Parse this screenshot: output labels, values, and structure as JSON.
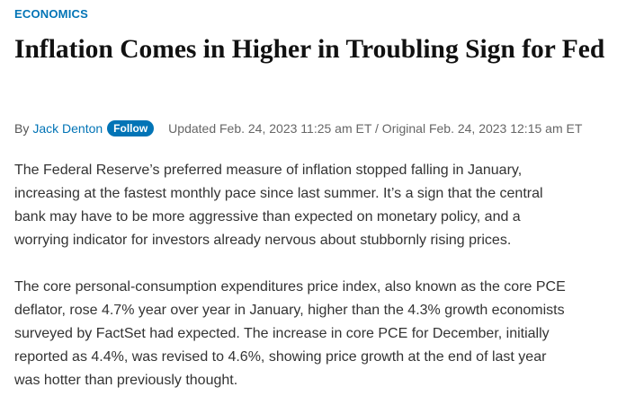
{
  "header": {
    "section": "ECONOMICS",
    "title": "Inflation Comes in Higher in Troubling Sign for Fed"
  },
  "byline": {
    "by": "By",
    "author": "Jack Denton",
    "follow": "Follow",
    "updated": "Updated Feb. 24, 2023 11:25 am ET / Original Feb. 24, 2023 12:15 am ET"
  },
  "body": {
    "paragraphs": [
      [
        "The Federal Reserve’s preferred measure of inflation stopped falling in January,",
        "increasing at the fastest monthly pace since last summer. It’s a sign that the central",
        "bank may have to be more aggressive than expected on monetary policy, and a",
        "worrying indicator for investors already nervous about stubbornly rising prices."
      ],
      [
        "The core personal-consumption expenditures price index, also known as the core PCE",
        "deflator, rose 4.7% year over year in January, higher than the 4.3% growth economists",
        "surveyed by FactSet had expected. The increase in core PCE for December, initially",
        "reported as 4.4%, was revised to 4.6%, showing price growth at the end of last year",
        "was hotter than previously thought."
      ]
    ]
  }
}
